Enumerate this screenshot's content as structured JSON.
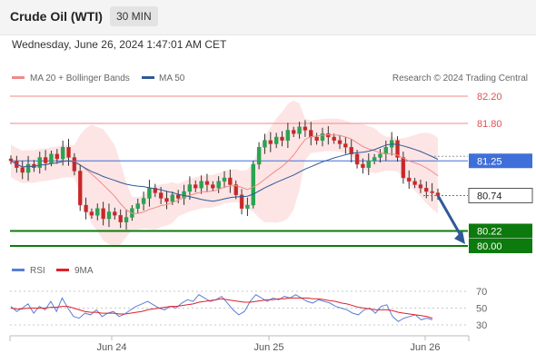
{
  "header": {
    "title": "Crude Oil (WTI)",
    "timeframe": "30 MIN",
    "datetime": "Wednesday, June 26, 2024 1:47:01 AM CET"
  },
  "chart_data": [
    {
      "type": "candlestick",
      "legend": [
        {
          "name": "MA 20 + Bollinger Bands",
          "color": "#f08a8a"
        },
        {
          "name": "MA 50",
          "color": "#2f5a96"
        }
      ],
      "source": "Research © 2024 Trading Central",
      "x_ticks": [
        "Jun 24",
        "Jun 25",
        "Jun 26"
      ],
      "last_price": 80.74,
      "levels": [
        {
          "value": 82.2,
          "label": "82.20",
          "kind": "resistance",
          "color": "#f08a8a"
        },
        {
          "value": 81.8,
          "label": "81.80",
          "kind": "resistance",
          "color": "#f08a8a"
        },
        {
          "value": 81.25,
          "label": "81.25",
          "kind": "pivot",
          "color": "#3f6fd8"
        },
        {
          "value": 80.22,
          "label": "80.22",
          "kind": "target",
          "color": "#0d7a0d"
        },
        {
          "value": 80.0,
          "label": "80.00",
          "kind": "target",
          "color": "#0d7a0d"
        }
      ],
      "price_label": "80.74",
      "ylim": [
        79.95,
        82.3
      ],
      "close_path": [
        81.25,
        81.15,
        81.08,
        81.2,
        81.15,
        81.3,
        81.22,
        81.35,
        81.28,
        81.45,
        81.3,
        81.1,
        80.6,
        80.5,
        80.45,
        80.55,
        80.4,
        80.5,
        80.45,
        80.35,
        80.42,
        80.55,
        80.62,
        80.7,
        80.85,
        80.78,
        80.7,
        80.65,
        80.75,
        80.7,
        80.8,
        80.9,
        80.85,
        80.95,
        80.9,
        80.85,
        80.95,
        81.0,
        80.9,
        80.75,
        80.55,
        80.6,
        81.2,
        81.45,
        81.55,
        81.5,
        81.6,
        81.55,
        81.7,
        81.65,
        81.75,
        81.7,
        81.6,
        81.55,
        81.65,
        81.6,
        81.55,
        81.5,
        81.45,
        81.35,
        81.2,
        81.15,
        81.25,
        81.3,
        81.35,
        81.45,
        81.55,
        81.3,
        81.0,
        80.95,
        80.9,
        80.85,
        80.8,
        80.78,
        80.74
      ]
    },
    {
      "type": "line",
      "legend": [
        {
          "name": "RSI",
          "color": "#5b7fd6"
        },
        {
          "name": "9MA",
          "color": "#e0202a"
        }
      ],
      "y_ticks": [
        70,
        50,
        30
      ],
      "ylim": [
        25,
        75
      ],
      "rsi": [
        52,
        46,
        50,
        55,
        44,
        52,
        48,
        58,
        46,
        62,
        50,
        40,
        38,
        44,
        42,
        48,
        40,
        44,
        46,
        40,
        43,
        48,
        52,
        55,
        58,
        54,
        50,
        48,
        52,
        50,
        56,
        60,
        58,
        66,
        62,
        58,
        60,
        64,
        56,
        48,
        42,
        46,
        58,
        66,
        62,
        58,
        62,
        60,
        64,
        62,
        66,
        62,
        58,
        56,
        60,
        58,
        56,
        52,
        50,
        48,
        44,
        42,
        48,
        50,
        44,
        52,
        54,
        40,
        34,
        38,
        40,
        42,
        36,
        38,
        36
      ],
      "ma9": [
        50,
        49,
        49,
        50,
        50,
        50,
        50,
        51,
        51,
        52,
        52,
        50,
        48,
        46,
        45,
        45,
        44,
        44,
        44,
        43,
        43,
        44,
        45,
        46,
        48,
        49,
        50,
        51,
        52,
        52,
        53,
        54,
        55,
        57,
        58,
        59,
        60,
        61,
        60,
        59,
        58,
        57,
        57,
        58,
        59,
        60,
        60,
        61,
        61,
        62,
        62,
        62,
        62,
        61,
        61,
        60,
        59,
        58,
        56,
        55,
        53,
        51,
        50,
        49,
        48,
        48,
        48,
        47,
        45,
        44,
        43,
        42,
        41,
        40,
        38
      ]
    }
  ]
}
